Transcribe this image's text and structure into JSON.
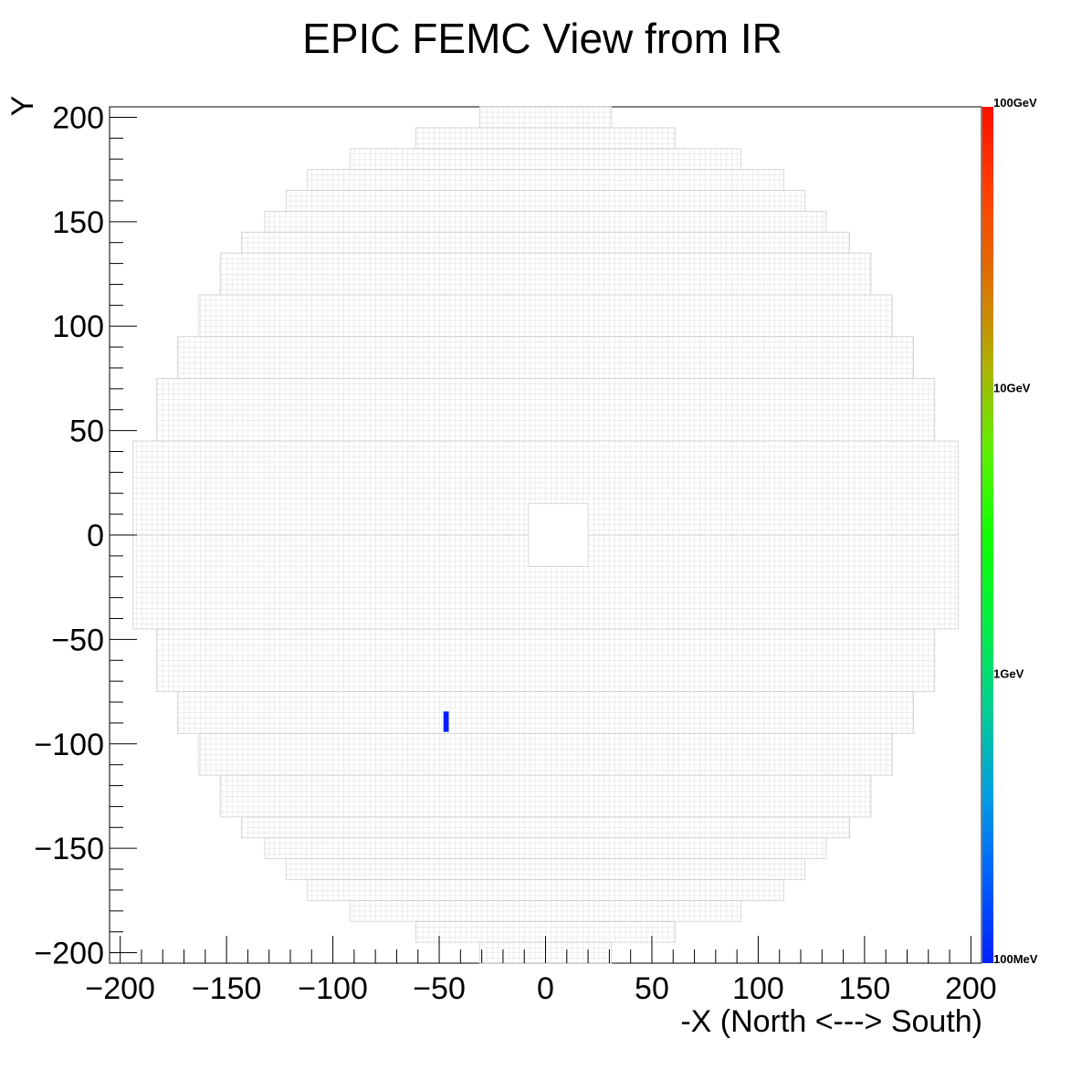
{
  "chart_data": {
    "type": "heatmap",
    "title": "EPIC FEMC View from IR",
    "xlabel": "-X (North <---> South)",
    "ylabel": "Y",
    "xlim": [
      -205,
      205
    ],
    "ylim": [
      -205,
      205
    ],
    "x_ticks": [
      -200,
      -150,
      -100,
      -50,
      0,
      50,
      100,
      150,
      200
    ],
    "y_ticks": [
      200,
      150,
      100,
      50,
      0,
      -50,
      -100,
      -150,
      -200
    ],
    "x_tick_labels": [
      "−200",
      "−150",
      "−100",
      "−50",
      "0",
      "50",
      "100",
      "150",
      "200"
    ],
    "y_tick_labels": [
      "200",
      "150",
      "100",
      "50",
      "0",
      "−50",
      "−100",
      "−150",
      "−200"
    ],
    "grid": false,
    "cell_size": 2.5,
    "beam_hole": {
      "x": [
        -8,
        20
      ],
      "y": [
        -15,
        15
      ]
    },
    "detector_envelope": [
      {
        "y": [
          195,
          205
        ],
        "x": [
          -31,
          31
        ]
      },
      {
        "y": [
          185,
          195
        ],
        "x": [
          -61,
          61
        ]
      },
      {
        "y": [
          175,
          185
        ],
        "x": [
          -92,
          92
        ]
      },
      {
        "y": [
          165,
          175
        ],
        "x": [
          -112,
          112
        ]
      },
      {
        "y": [
          155,
          165
        ],
        "x": [
          -122,
          122
        ]
      },
      {
        "y": [
          145,
          155
        ],
        "x": [
          -132,
          132
        ]
      },
      {
        "y": [
          135,
          145
        ],
        "x": [
          -143,
          143
        ]
      },
      {
        "y": [
          115,
          135
        ],
        "x": [
          -153,
          153
        ]
      },
      {
        "y": [
          95,
          115
        ],
        "x": [
          -163,
          163
        ]
      },
      {
        "y": [
          75,
          95
        ],
        "x": [
          -173,
          173
        ]
      },
      {
        "y": [
          45,
          75
        ],
        "x": [
          -183,
          183
        ]
      },
      {
        "y": [
          0,
          45
        ],
        "x": [
          -194,
          194
        ]
      }
    ],
    "hits": [
      {
        "x": -48,
        "y": -88,
        "energy_gev": 0.1
      }
    ],
    "colorbar": {
      "scale": "log",
      "range_gev": [
        0.1,
        100
      ],
      "labels": [
        "100GeV",
        "10GeV",
        "1GeV",
        "100MeV"
      ],
      "label_values_gev": [
        100,
        10,
        1,
        0.1
      ],
      "colors": [
        "#0020ff",
        "#0060ff",
        "#00a0e0",
        "#00d090",
        "#00f040",
        "#10ff00",
        "#60f000",
        "#b0b000",
        "#e07000",
        "#ff4000",
        "#ff1000"
      ]
    },
    "colors": {
      "cell_stroke": "#cfcfcf",
      "axis": "#000000",
      "background": "#ffffff"
    }
  }
}
